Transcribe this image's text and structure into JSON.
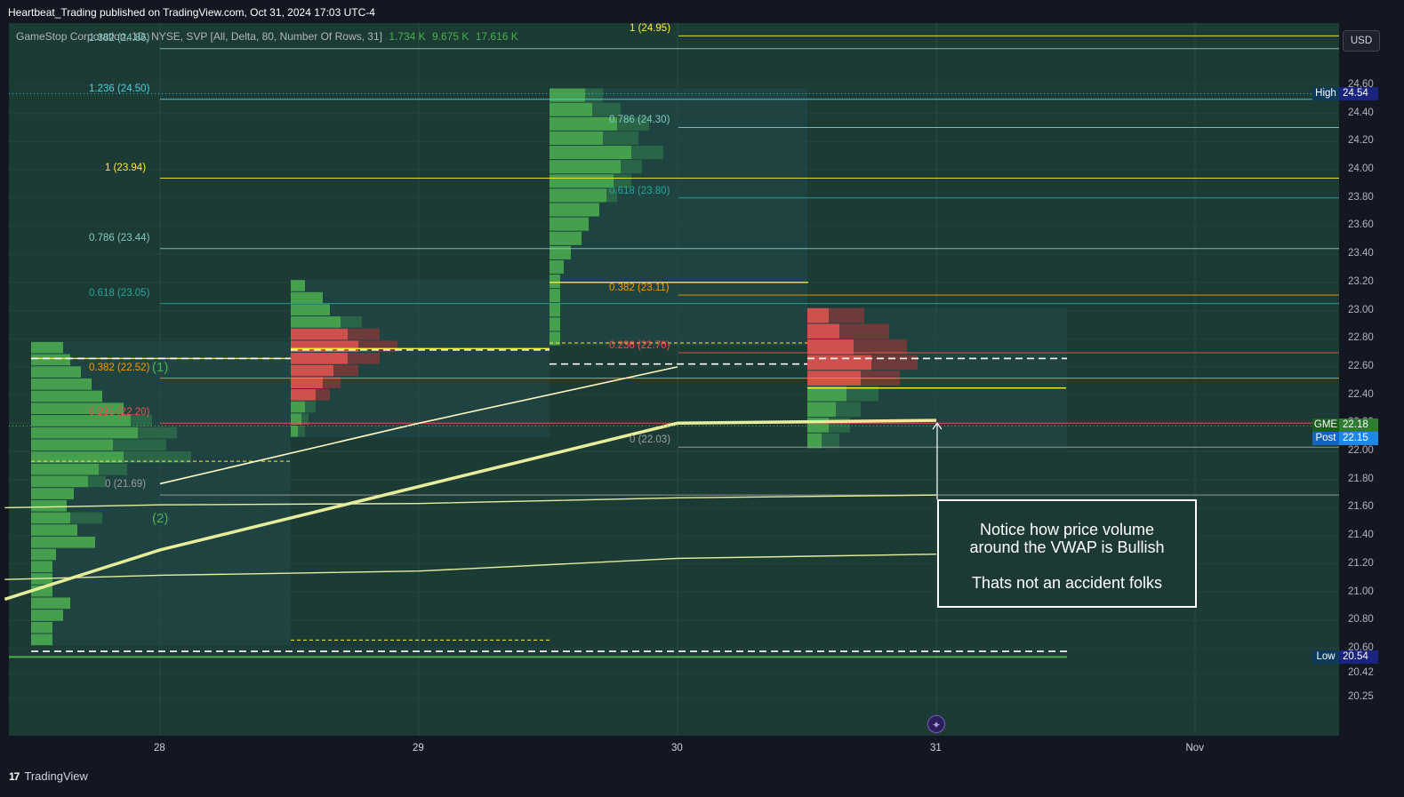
{
  "header": {
    "published": "Heartbeat_Trading published on TradingView.com, Oct 31, 2024 17:03 UTC-4"
  },
  "legend": {
    "symbol": "GameStop Corporation, 1D, NYSE, SVP [All, Delta, 80, Number Of Rows, 31]",
    "v1": "1.734 K",
    "v2": "9.675 K",
    "v3": "17.616 K"
  },
  "currency": "USD",
  "footer": {
    "brand": "TradingView"
  },
  "annotation": {
    "line1": "Notice how price volume",
    "line2": "around the VWAP is Bullish",
    "line3": "Thats not an accident folks"
  },
  "waves": {
    "w1": "(1)",
    "w2": "(2)"
  },
  "badges": {
    "high": {
      "label": "High",
      "value": "24.54"
    },
    "gme": {
      "label": "GME",
      "value": "22.18"
    },
    "post": {
      "label": "Post",
      "value": "22.15"
    },
    "low": {
      "label": "Low",
      "value": "20.54"
    }
  },
  "colors": {
    "bg": "#1e222d",
    "panel": "#1f3531",
    "green": "#4caf50",
    "red": "#ef5350",
    "yellow": "#ffeb3b",
    "teal": "#80cbc4",
    "orange": "#ff9800"
  },
  "chart_data": {
    "type": "line",
    "x_categories": [
      "28",
      "29",
      "30",
      "31",
      "Nov"
    ],
    "y_ticks": [
      20.25,
      20.42,
      20.6,
      20.8,
      21.0,
      21.2,
      21.4,
      21.6,
      21.8,
      22.0,
      22.2,
      22.4,
      22.6,
      22.8,
      23.0,
      23.2,
      23.4,
      23.6,
      23.8,
      24.0,
      24.2,
      24.4,
      24.6
    ],
    "y_tick_labels": [
      "20.25",
      "20.42",
      "20.60",
      "20.80",
      "21.00",
      "21.20",
      "21.40",
      "21.60",
      "21.80",
      "22.00",
      "22.20",
      "22.40",
      "22.60",
      "22.80",
      "23.00",
      "23.20",
      "23.40",
      "23.60",
      "23.80",
      "24.00",
      "24.20",
      "24.40",
      "24.60"
    ],
    "fib_sets": [
      {
        "levels": [
          {
            "text": "1.382 (24.86)",
            "price": 24.86,
            "color": "#80cbc4"
          },
          {
            "text": "1.236 (24.50)",
            "price": 24.5,
            "color": "#4dd0e1"
          },
          {
            "text": "1 (23.94)",
            "price": 23.94,
            "color": "#ffeb3b"
          },
          {
            "text": "0.786 (23.44)",
            "price": 23.44,
            "color": "#80cbc4"
          },
          {
            "text": "0.618 (23.05)",
            "price": 23.05,
            "color": "#26a69a"
          },
          {
            "text": "0.382 (22.52)",
            "price": 22.52,
            "color": "#ff9800"
          },
          {
            "text": "0.236 (22.20)",
            "price": 22.2,
            "color": "#ef5350"
          },
          {
            "text": "0 (21.69)",
            "price": 21.69,
            "color": "#9e9e9e"
          }
        ]
      },
      {
        "levels": [
          {
            "text": "1 (24.95)",
            "price": 24.95,
            "color": "#ffeb3b"
          },
          {
            "text": "0.786 (24.30)",
            "price": 24.3,
            "color": "#80cbc4"
          },
          {
            "text": "0.618 (23.80)",
            "price": 23.8,
            "color": "#26a69a"
          },
          {
            "text": "0.382 (23.11)",
            "price": 23.11,
            "color": "#ff9800"
          },
          {
            "text": "0.236 (22.70)",
            "price": 22.7,
            "color": "#ef5350"
          },
          {
            "text": "0 (22.03)",
            "price": 22.03,
            "color": "#9e9e9e"
          }
        ]
      }
    ],
    "vwap_bands": [
      {
        "x": [
          -0.6,
          0,
          1,
          2,
          3
        ],
        "y": [
          20.95,
          21.3,
          21.75,
          22.2,
          22.22
        ]
      },
      {
        "x": [
          0,
          1,
          2
        ],
        "y": [
          21.77,
          22.2,
          22.6
        ]
      },
      {
        "x": [
          -0.6,
          0,
          1,
          2,
          3
        ],
        "y": [
          21.6,
          21.62,
          21.63,
          21.67,
          21.69
        ]
      },
      {
        "x": [
          -0.6,
          0,
          1,
          2,
          3
        ],
        "y": [
          21.09,
          21.12,
          21.15,
          21.24,
          21.27
        ]
      }
    ],
    "volume_profiles": [
      {
        "day": 0,
        "low": 20.62,
        "high": 22.78,
        "poc": 22.66,
        "up_rows": [
          0.9,
          1.1,
          1.4,
          1.7,
          2.0,
          2.6,
          2.8,
          3.0,
          2.3,
          2.6,
          1.9,
          1.6,
          1.2,
          1.0,
          1.1,
          1.3,
          1.8,
          0.7,
          0.6,
          0.6,
          0.6,
          1.1,
          0.9,
          0.6,
          0.6
        ],
        "down_rows": [
          0,
          0,
          0,
          0,
          0,
          0,
          0.6,
          1.1,
          1.5,
          1.9,
          0.8,
          0.5,
          0,
          0,
          0.9,
          0,
          0,
          0,
          0,
          0,
          0,
          0,
          0,
          0,
          0
        ]
      },
      {
        "day": 1,
        "low": 22.1,
        "high": 23.22,
        "poc": 22.73,
        "up_rows": [
          0.4,
          0.9,
          1.1,
          1.4,
          1.6,
          1.9,
          1.6,
          1.2,
          0.9,
          0.7,
          0.4,
          0.3,
          0.2
        ],
        "down_rows": [
          0,
          0,
          0,
          0.6,
          0.9,
          1.1,
          0.9,
          0.7,
          0.5,
          0.4,
          0.3,
          0.2,
          0.2
        ]
      },
      {
        "day": 2,
        "low": 22.75,
        "high": 24.58,
        "poc": 23.2,
        "up_rows": [
          1.0,
          1.2,
          1.9,
          1.5,
          2.3,
          2.0,
          1.8,
          1.6,
          1.4,
          1.1,
          0.9,
          0.6,
          0.4,
          0.3,
          0.3,
          0.3,
          0.3,
          0.3
        ],
        "down_rows": [
          0.5,
          0.8,
          0.9,
          1.0,
          0.9,
          0.6,
          0.5,
          0.3,
          0,
          0,
          0,
          0,
          0,
          0,
          0,
          0,
          0,
          0
        ]
      },
      {
        "day": 3,
        "low": 22.02,
        "high": 23.02,
        "poc": 22.45,
        "up_rows": [
          0.6,
          0.9,
          1.3,
          1.8,
          1.5,
          1.1,
          0.8,
          0.6,
          0.4
        ],
        "down_rows": [
          1.0,
          1.4,
          1.5,
          1.3,
          1.1,
          0.9,
          0.7,
          0.6,
          0.5
        ]
      }
    ],
    "last_price": 22.18,
    "post_price": 22.15,
    "session_high": 24.54,
    "session_low": 20.54
  }
}
